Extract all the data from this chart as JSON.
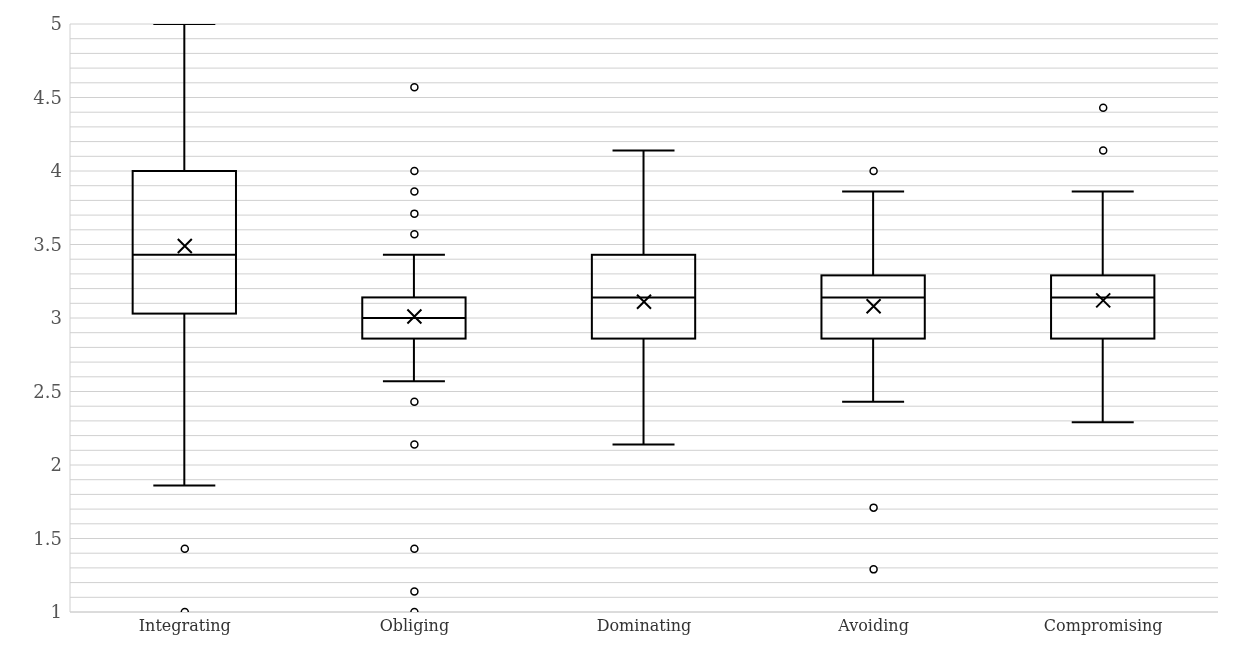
{
  "chart_data": {
    "type": "box",
    "categories": [
      "Integrating",
      "Obliging",
      "Dominating",
      "Avoiding",
      "Compromising"
    ],
    "boxes": [
      {
        "low": 1.86,
        "q1": 3.03,
        "median": 3.43,
        "q3": 4.0,
        "high": 5.0,
        "mean": 3.49,
        "outliers": [
          1.43,
          1.0
        ]
      },
      {
        "low": 2.57,
        "q1": 2.86,
        "median": 3.0,
        "q3": 3.14,
        "high": 3.43,
        "mean": 3.01,
        "outliers": [
          4.57,
          4.0,
          3.86,
          3.71,
          3.57,
          2.43,
          2.14,
          1.43,
          1.14,
          1.0
        ]
      },
      {
        "low": 2.14,
        "q1": 2.86,
        "median": 3.14,
        "q3": 3.43,
        "high": 4.14,
        "mean": 3.11
      },
      {
        "low": 2.43,
        "q1": 2.86,
        "median": 3.14,
        "q3": 3.29,
        "high": 3.86,
        "mean": 3.08,
        "outliers": [
          4.0,
          1.71,
          1.29
        ]
      },
      {
        "low": 2.29,
        "q1": 2.86,
        "median": 3.14,
        "q3": 3.29,
        "high": 3.86,
        "mean": 3.12,
        "outliers": [
          4.43,
          4.14
        ]
      }
    ],
    "color": "#000000",
    "ylim": [
      1,
      5
    ],
    "yticks": [
      1,
      {
        "value": 1.1,
        "label": null
      },
      {
        "value": 1.2,
        "label": null
      },
      {
        "value": 1.3,
        "label": null
      },
      {
        "value": 1.4,
        "label": null
      },
      1.5,
      {
        "value": 1.6,
        "label": null
      },
      {
        "value": 1.7,
        "label": null
      },
      {
        "value": 1.8,
        "label": null
      },
      {
        "value": 1.9,
        "label": null
      },
      2,
      {
        "value": 2.1,
        "label": null
      },
      {
        "value": 2.2,
        "label": null
      },
      {
        "value": 2.3,
        "label": null
      },
      {
        "value": 2.4,
        "label": null
      },
      2.5,
      {
        "value": 2.6,
        "label": null
      },
      {
        "value": 2.7,
        "label": null
      },
      {
        "value": 2.8,
        "label": null
      },
      {
        "value": 2.9,
        "label": null
      },
      3,
      {
        "value": 3.1,
        "label": null
      },
      {
        "value": 3.2,
        "label": null
      },
      {
        "value": 3.3,
        "label": null
      },
      {
        "value": 3.4,
        "label": null
      },
      3.5,
      {
        "value": 3.6,
        "label": null
      },
      {
        "value": 3.7,
        "label": null
      },
      {
        "value": 3.8,
        "label": null
      },
      {
        "value": 3.9,
        "label": null
      },
      4,
      {
        "value": 4.1,
        "label": null
      },
      {
        "value": 4.2,
        "label": null
      },
      {
        "value": 4.3,
        "label": null
      },
      {
        "value": 4.4,
        "label": null
      },
      4.5,
      {
        "value": 4.6,
        "label": null
      },
      {
        "value": 4.7,
        "label": null
      },
      {
        "value": 4.8,
        "label": null
      },
      {
        "value": 4.9,
        "label": null
      },
      5
    ],
    "grid": "y"
  }
}
